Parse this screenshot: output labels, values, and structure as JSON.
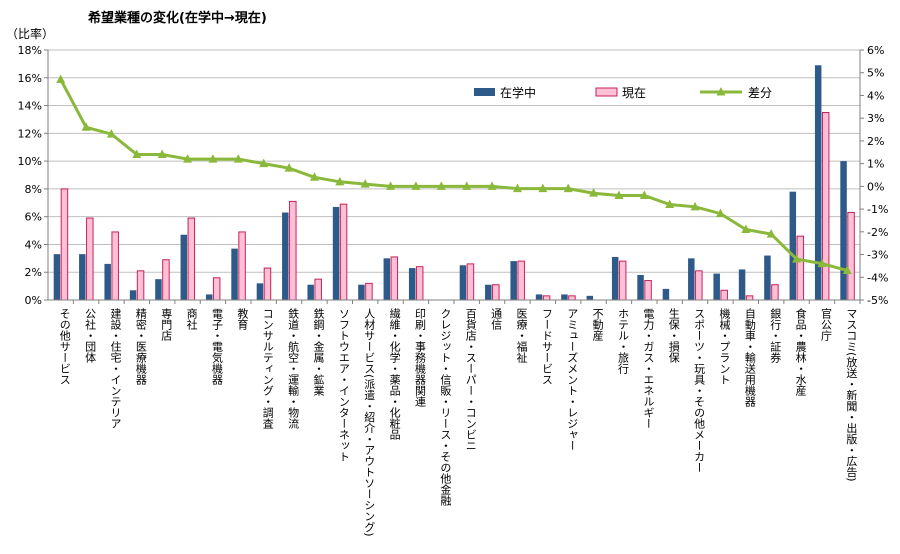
{
  "chart_data": {
    "type": "bar",
    "title": "希望業種の変化(在学中→現在)",
    "ylabel": "（比率）",
    "ylim": [
      0,
      18
    ],
    "y2lim": [
      -5,
      6
    ],
    "grid": true,
    "legend_position": "top-right",
    "colors": {
      "zaigaku": "#2e5a8a",
      "genzai": "#ffc0d6",
      "genzai_border": "#c8205a",
      "sabun": "#8ab83a",
      "grid": "#bfbfbf",
      "axis": "#808080"
    },
    "y_ticks": [
      "0%",
      "2%",
      "4%",
      "6%",
      "8%",
      "10%",
      "12%",
      "14%",
      "16%",
      "18%"
    ],
    "y2_ticks": [
      "-5%",
      "-4%",
      "-3%",
      "-2%",
      "-1%",
      "0%",
      "1%",
      "2%",
      "3%",
      "4%",
      "5%",
      "6%"
    ],
    "categories": [
      "その他サービス",
      "公社・団体",
      "建設・住宅・インテリア",
      "精密・医療機器",
      "専門店",
      "商社",
      "電子・電気機器",
      "教育",
      "コンサルティング・調査",
      "鉄道・航空・運輸・物流",
      "鉄鋼・金属・鉱業",
      "ソフトウエア・インターネット",
      "人材サービス(派遣・紹介・アウトソーシング)",
      "繊維・化学・薬品・化粧品",
      "印刷・事務機器関連",
      "クレジット・信販・リース・その他金融",
      "百貨店・スーパー・コンビニ",
      "通信",
      "医療・福祉",
      "フードサービス",
      "アミューズメント・レジャー",
      "不動産",
      "ホテル・旅行",
      "電力・ガス・エネルギー",
      "生保・損保",
      "スポーツ・玩具・その他メーカー",
      "機械・プラント",
      "自動車・輸送用機器",
      "銀行・証券",
      "食品・農林・水産",
      "官公庁",
      "マスコミ(放送・新聞・出版・広告)"
    ],
    "series": [
      {
        "name": "在学中",
        "type": "bar",
        "axis": "left",
        "values": [
          3.3,
          3.3,
          2.6,
          0.7,
          1.5,
          4.7,
          0.4,
          3.7,
          1.2,
          6.3,
          1.1,
          6.7,
          1.1,
          3.0,
          2.3,
          0.0,
          2.5,
          1.1,
          2.8,
          0.4,
          0.4,
          0.3,
          3.1,
          1.8,
          0.8,
          3.0,
          1.9,
          2.2,
          3.2,
          7.8,
          16.9,
          10.0
        ]
      },
      {
        "name": "現在",
        "type": "bar",
        "axis": "left",
        "values": [
          8.0,
          5.9,
          4.9,
          2.1,
          2.9,
          5.9,
          1.6,
          4.9,
          2.3,
          7.1,
          1.5,
          6.9,
          1.2,
          3.1,
          2.4,
          0.0,
          2.6,
          1.1,
          2.8,
          0.3,
          0.3,
          0.0,
          2.8,
          1.4,
          0.0,
          2.1,
          0.7,
          0.3,
          1.1,
          4.6,
          13.5,
          6.3
        ]
      },
      {
        "name": "差分",
        "type": "line",
        "axis": "right",
        "values": [
          4.7,
          2.6,
          2.3,
          1.4,
          1.4,
          1.2,
          1.2,
          1.2,
          1.0,
          0.8,
          0.4,
          0.2,
          0.1,
          0.0,
          0.0,
          0.0,
          0.0,
          0.0,
          -0.1,
          -0.1,
          -0.1,
          -0.3,
          -0.4,
          -0.4,
          -0.8,
          -0.9,
          -1.2,
          -1.9,
          -2.1,
          -3.2,
          -3.4,
          -3.7
        ]
      }
    ]
  }
}
